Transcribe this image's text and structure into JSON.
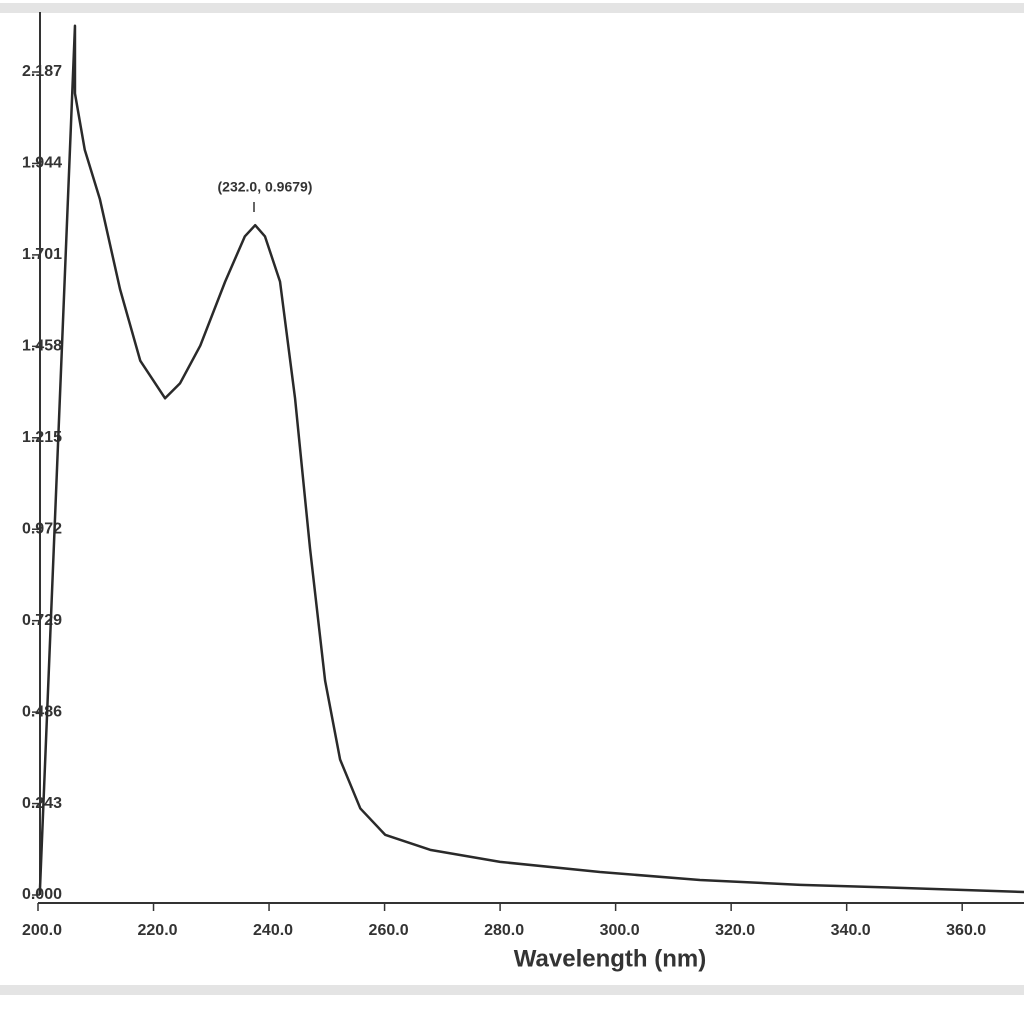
{
  "chart_data": {
    "type": "line",
    "annotation": "(232.0, 0.9679)",
    "x_label": "Wavelength (nm)",
    "xlim": [
      200,
      370.7
    ],
    "ylim": [
      0,
      2.33
    ],
    "xticks": [
      {
        "value": 200,
        "label": "200.0"
      },
      {
        "value": 220,
        "label": "220.0"
      },
      {
        "value": 240,
        "label": "240.0"
      },
      {
        "value": 260,
        "label": "260.0"
      },
      {
        "value": 280,
        "label": "280.0"
      },
      {
        "value": 300,
        "label": "300.0"
      },
      {
        "value": 320,
        "label": "320.0"
      },
      {
        "value": 340,
        "label": "340.0"
      },
      {
        "value": 360,
        "label": "360.0"
      }
    ],
    "yticks": [
      {
        "value": 0,
        "label": "0.000"
      },
      0.243,
      0.486,
      0.729,
      0.972,
      1.215,
      1.458,
      1.701,
      1.944,
      2.187
    ],
    "series": [
      {
        "color": "#2a2a2a",
        "x": [
          200.3,
          206.4,
          206.4,
          208.1,
          210.7,
          214.2,
          217.7,
          222.0,
          224.6,
          228.1,
          232.4,
          235.8,
          237.6,
          239.3,
          241.9,
          244.5,
          247.1,
          249.7,
          252.3,
          255.8,
          260.1,
          267.9,
          280.0,
          297.3,
          314.6,
          332.0,
          349.3,
          370.7
        ],
        "values": [
          0,
          2.31,
          2.13,
          1.98,
          1.85,
          1.61,
          1.42,
          1.32,
          1.36,
          1.46,
          1.63,
          1.75,
          1.78,
          1.75,
          1.63,
          1.32,
          0.92,
          0.57,
          0.36,
          0.23,
          0.16,
          0.12,
          0.088,
          0.061,
          0.04,
          0.027,
          0.019,
          0.008
        ]
      }
    ]
  }
}
